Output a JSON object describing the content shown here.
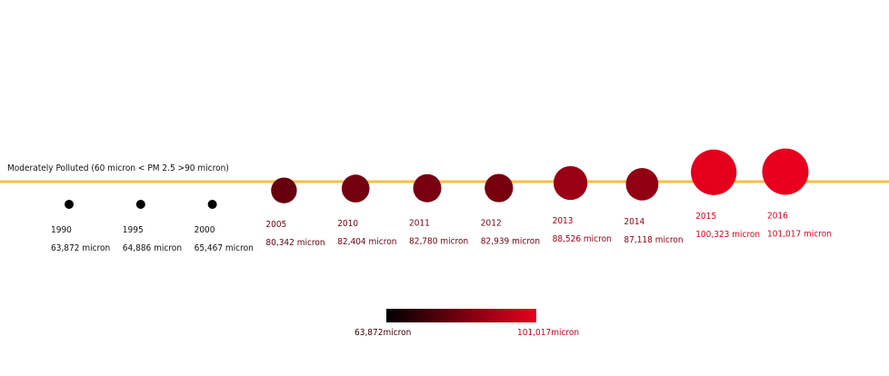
{
  "chart_data": {
    "type": "scatter",
    "title": "",
    "unit": "micron",
    "threshold": {
      "label": "Moderately Polluted (60 micron < PM 2.5 >90 micron)",
      "color": "#f5c044"
    },
    "points": [
      {
        "year": "1990",
        "value": 63872,
        "value_label": "63,872 micron"
      },
      {
        "year": "1995",
        "value": 64886,
        "value_label": "64,886 micron"
      },
      {
        "year": "2000",
        "value": 65467,
        "value_label": "65,467 micron"
      },
      {
        "year": "2005",
        "value": 80342,
        "value_label": "80,342 micron"
      },
      {
        "year": "2010",
        "value": 82404,
        "value_label": "82,404 micron"
      },
      {
        "year": "2011",
        "value": 82780,
        "value_label": "82,780 micron"
      },
      {
        "year": "2012",
        "value": 82939,
        "value_label": "82,939 micron"
      },
      {
        "year": "2013",
        "value": 88526,
        "value_label": "88,526 micron"
      },
      {
        "year": "2014",
        "value": 87118,
        "value_label": "87,118 micron"
      },
      {
        "year": "2015",
        "value": 100323,
        "value_label": "100,323 micron"
      },
      {
        "year": "2016",
        "value": 101017,
        "value_label": "101,017 micron"
      }
    ],
    "legend": {
      "min": 63872,
      "max": 101017,
      "min_label": "63,872micron",
      "max_label": "101,017micron",
      "color_low": "#000000",
      "color_high": "#e8001e"
    }
  }
}
